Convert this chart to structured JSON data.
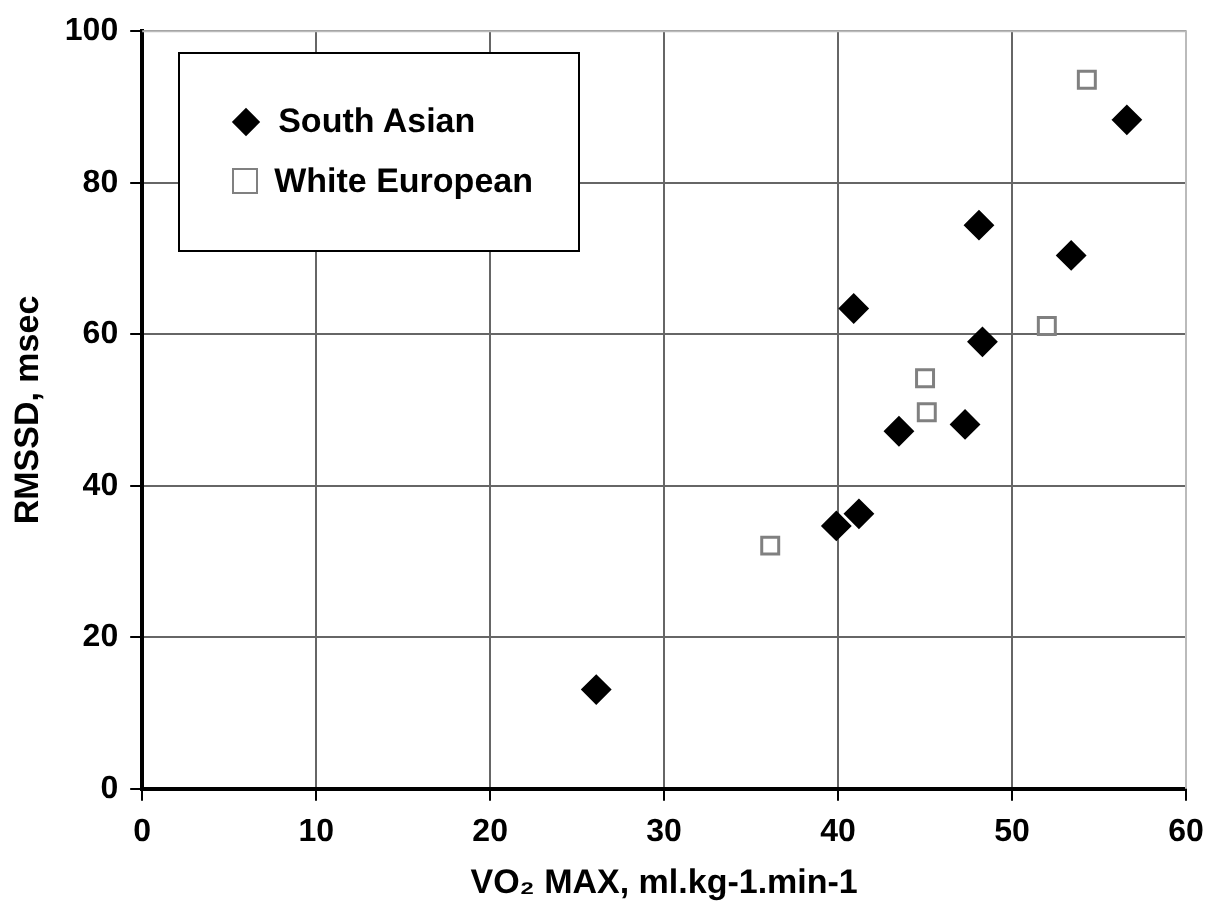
{
  "chart_data": {
    "type": "scatter",
    "xlabel": "VO₂ MAX, ml.kg-1.min-1",
    "ylabel": "RMSSD, msec",
    "xlim": [
      0,
      60
    ],
    "xticks": [
      0,
      10,
      20,
      30,
      40,
      50,
      60
    ],
    "ylim": [
      0,
      100
    ],
    "yticks": [
      0,
      20,
      40,
      60,
      80,
      100
    ],
    "grid": true,
    "legend": "top left",
    "series": [
      {
        "name": "South Asian",
        "color": "#000000",
        "marker": "diamond",
        "x": [
          26.1,
          39.9,
          41.2,
          40.9,
          43.5,
          47.3,
          48.1,
          48.3,
          53.4,
          56.6
        ],
        "values": [
          13.1,
          34.7,
          36.3,
          63.4,
          47.2,
          48.1,
          74.4,
          59.0,
          70.4,
          88.3
        ]
      },
      {
        "name": "White European",
        "color": "#808080",
        "marker": "square",
        "x": [
          36.1,
          45.0,
          45.1,
          52.0,
          54.3
        ],
        "values": [
          32.1,
          54.2,
          49.7,
          61.1,
          93.6
        ]
      }
    ]
  }
}
